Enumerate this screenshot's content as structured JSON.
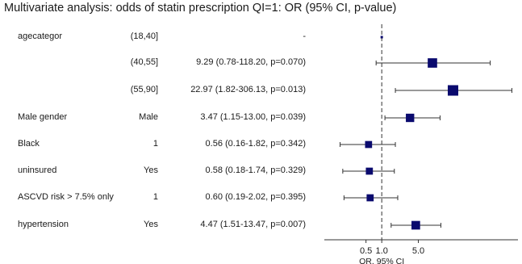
{
  "title": "Multivariate analysis: odds of statin prescription QI=1: OR (95% CI, p-value)",
  "chart_data": {
    "type": "forest",
    "x_scale": "log",
    "xlabel": "OR, 95% CI",
    "xticks": [
      0.5,
      1.0,
      5.0
    ],
    "xtick_labels": [
      "0.5",
      "1.0",
      "5.0"
    ],
    "xlim": [
      0.08,
      400
    ],
    "reference_line": 1.0,
    "rows": [
      {
        "variable": "agecategor",
        "level": "(18,40]",
        "estimate_text": "-",
        "or": 1.0,
        "lo": 1.0,
        "hi": 1.0,
        "reference": true
      },
      {
        "variable": "",
        "level": "(40,55]",
        "estimate_text": "9.29 (0.78-118.20, p=0.070)",
        "or": 9.29,
        "lo": 0.78,
        "hi": 118.2
      },
      {
        "variable": "",
        "level": "(55,90]",
        "estimate_text": "22.97 (1.82-306.13, p=0.013)",
        "or": 22.97,
        "lo": 1.82,
        "hi": 306.13
      },
      {
        "variable": "Male gender",
        "level": "Male",
        "estimate_text": "3.47 (1.15-13.00, p=0.039)",
        "or": 3.47,
        "lo": 1.15,
        "hi": 13.0
      },
      {
        "variable": "Black",
        "level": "1",
        "estimate_text": "0.56 (0.16-1.82, p=0.342)",
        "or": 0.56,
        "lo": 0.16,
        "hi": 1.82
      },
      {
        "variable": "uninsured",
        "level": "Yes",
        "estimate_text": "0.58 (0.18-1.74, p=0.329)",
        "or": 0.58,
        "lo": 0.18,
        "hi": 1.74
      },
      {
        "variable": "ASCVD risk > 7.5% only",
        "level": "1",
        "estimate_text": "0.60 (0.19-2.02, p=0.395)",
        "or": 0.6,
        "lo": 0.19,
        "hi": 2.02
      },
      {
        "variable": "hypertension",
        "level": "Yes",
        "estimate_text": "4.47 (1.51-13.47, p=0.007)",
        "or": 4.47,
        "lo": 1.51,
        "hi": 13.47
      }
    ]
  },
  "colors": {
    "marker": "#0a0a6e",
    "line": "#333333",
    "text": "#1a1a1a"
  }
}
